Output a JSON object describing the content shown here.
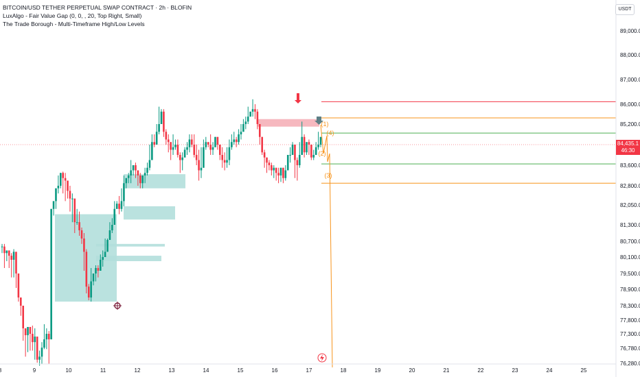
{
  "legend": {
    "title": "BITCOIN/USD TETHER PERPETUAL SWAP CONTRACT · 2h · BLOFIN",
    "indicator1": "LuxAlgo - Fair Value Gap (0, 0, , 20, Top Right, Small)",
    "indicator2": "The Trade Borough - Multi-Timeframe High/Low Levels"
  },
  "currency_label": "USDT",
  "last_price": {
    "value": "84,435.1",
    "countdown": "46:30"
  },
  "colors": {
    "up": "#089981",
    "down": "#f23645",
    "fvg_bull": "#b2dfdb",
    "fvg_bear": "#f5b4bc",
    "orange": "#f7931a",
    "green_line": "#4caf50",
    "red_line": "#f23645"
  },
  "chart_data": {
    "type": "candlestick",
    "title": "BITCOIN/USD TETHER PERPETUAL SWAP CONTRACT",
    "y_ticks": [
      "89,000.0",
      "88,000.0",
      "87,000.0",
      "86,000.0",
      "85,200.0",
      "84,400.0",
      "83,600.0",
      "82,800.0",
      "82,050.0",
      "81,300.0",
      "80,700.0",
      "80,100.0",
      "79,500.0",
      "78,900.0",
      "78,300.0",
      "77,800.0",
      "77,300.0",
      "76,780.0",
      "76,280.0"
    ],
    "x_ticks": [
      "8",
      "9",
      "10",
      "11",
      "12",
      "13",
      "14",
      "15",
      "16",
      "17",
      "18",
      "19",
      "20",
      "21",
      "22",
      "23",
      "24",
      "25"
    ],
    "levels": [
      {
        "label": "",
        "value": 86100,
        "color": "red"
      },
      {
        "label": "",
        "value": 85450,
        "color": "orange"
      },
      {
        "label": "",
        "value": 84850,
        "color": "green"
      },
      {
        "label": "",
        "value": 83650,
        "color": "green"
      },
      {
        "label": "",
        "value": 82900,
        "color": "orange"
      }
    ],
    "wave_labels": [
      "(1)",
      "(2)",
      "(3)",
      "(4)"
    ],
    "fvg_zones": [
      {
        "type": "bull",
        "top": 81700,
        "bottom": 78450,
        "from": "9.6",
        "to": "11.4"
      },
      {
        "type": "bull",
        "top": 83250,
        "bottom": 82700,
        "from": "11.6",
        "to": "13.4"
      },
      {
        "type": "bull",
        "top": 82000,
        "bottom": 81500,
        "from": "11.6",
        "to": "13.1"
      },
      {
        "type": "bull",
        "top": 80600,
        "bottom": 80500,
        "from": "10.8",
        "to": "12.8"
      },
      {
        "type": "bull",
        "top": 80150,
        "bottom": 79950,
        "from": "10.8",
        "to": "12.7"
      },
      {
        "type": "bear",
        "top": 85400,
        "bottom": 85100,
        "from": "15.5",
        "to": "17.3"
      }
    ],
    "candles": [
      [
        80600,
        80500,
        80250
      ],
      [
        80600,
        80250,
        79700
      ],
      [
        80250,
        80350,
        79950
      ],
      [
        80300,
        80150,
        79700
      ],
      [
        80250,
        80000,
        79350
      ],
      [
        80400,
        80300,
        79350
      ],
      [
        80000,
        79500,
        78950
      ],
      [
        79500,
        78600,
        78450
      ],
      [
        78600,
        78300,
        77950
      ],
      [
        77800,
        77500,
        77050
      ],
      [
        77500,
        77250,
        76500
      ],
      [
        77400,
        77550,
        76650
      ],
      [
        77500,
        77300,
        76700
      ],
      [
        77600,
        77000,
        76700
      ],
      [
        77500,
        77200,
        76400
      ],
      [
        76800,
        76400,
        76300
      ],
      [
        76700,
        76500,
        76200
      ],
      [
        77000,
        76800,
        76250
      ],
      [
        77650,
        77100,
        76750
      ],
      [
        77500,
        77300,
        76750
      ],
      [
        77400,
        77100,
        76250
      ],
      [
        78600,
        81900,
        78550
      ],
      [
        81800,
        82200,
        81650
      ],
      [
        82500,
        82700,
        81900
      ],
      [
        83200,
        82800,
        82500
      ],
      [
        82800,
        83300,
        82700
      ],
      [
        83350,
        83100,
        82500
      ],
      [
        83300,
        83000,
        82200
      ],
      [
        83000,
        82600,
        82300
      ],
      [
        82800,
        82300,
        81800
      ],
      [
        82500,
        82300,
        81400
      ],
      [
        81900,
        81400,
        81000
      ],
      [
        81900,
        81400,
        81300
      ],
      [
        81800,
        81100,
        80900
      ],
      [
        81200,
        80800,
        80600
      ],
      [
        81000,
        80300,
        79600
      ],
      [
        80400,
        79000,
        78750
      ],
      [
        79100,
        78600,
        78500
      ],
      [
        79700,
        79200,
        78450
      ],
      [
        79200,
        79500,
        79050
      ],
      [
        79800,
        79700,
        79200
      ],
      [
        79800,
        79600,
        79350
      ],
      [
        80200,
        80000,
        79600
      ],
      [
        80350,
        80100,
        79750
      ],
      [
        80800,
        80300,
        80100
      ],
      [
        80800,
        80750,
        80300
      ],
      [
        81400,
        81100,
        80800
      ],
      [
        81550,
        81300,
        81000
      ],
      [
        82200,
        81900,
        81500
      ],
      [
        82200,
        82100,
        81900
      ],
      [
        82400,
        81900,
        81700
      ],
      [
        82700,
        82200,
        81800
      ],
      [
        83200,
        82900,
        82000
      ],
      [
        82900,
        83100,
        82700
      ],
      [
        83300,
        83200,
        82900
      ],
      [
        83800,
        83400,
        82900
      ],
      [
        83500,
        83600,
        83200
      ],
      [
        83700,
        83400,
        83100
      ],
      [
        83400,
        83200,
        82800
      ],
      [
        83300,
        82900,
        82700
      ],
      [
        82900,
        83200,
        82700
      ],
      [
        83500,
        83300,
        82900
      ],
      [
        83700,
        83500,
        83200
      ],
      [
        84400,
        83800,
        83400
      ],
      [
        84800,
        84500,
        83800
      ],
      [
        84800,
        84400,
        84300
      ],
      [
        85200,
        84900,
        84400
      ],
      [
        85900,
        85200,
        84800
      ],
      [
        85800,
        85700,
        85400
      ],
      [
        85800,
        84900,
        84700
      ],
      [
        85000,
        84600,
        84400
      ],
      [
        84800,
        84500,
        84100
      ],
      [
        84300,
        84200,
        83800
      ],
      [
        84800,
        84300,
        84000
      ],
      [
        84600,
        84400,
        84200
      ],
      [
        84600,
        84000,
        83900
      ],
      [
        84100,
        83800,
        83300
      ],
      [
        84100,
        83900,
        83400
      ],
      [
        84300,
        84200,
        83900
      ],
      [
        84500,
        84300,
        84000
      ],
      [
        84800,
        84600,
        84100
      ],
      [
        84800,
        84400,
        84300
      ],
      [
        84800,
        84000,
        83900
      ],
      [
        84400,
        83800,
        83600
      ],
      [
        84200,
        83400,
        83000
      ],
      [
        84300,
        83500,
        83100
      ],
      [
        84600,
        84300,
        83500
      ],
      [
        84700,
        84500,
        84200
      ],
      [
        84500,
        84400,
        84300
      ],
      [
        84800,
        84200,
        84000
      ],
      [
        84500,
        84300,
        84000
      ],
      [
        84500,
        84700,
        84300
      ],
      [
        84600,
        84400,
        84200
      ],
      [
        84200,
        84000,
        83800
      ],
      [
        84300,
        83800,
        83500
      ],
      [
        84100,
        83700,
        83400
      ],
      [
        84300,
        83800,
        83500
      ],
      [
        84600,
        84300,
        83600
      ],
      [
        84800,
        84500,
        84200
      ],
      [
        84900,
        84600,
        84400
      ],
      [
        84700,
        84500,
        84300
      ],
      [
        85000,
        84800,
        84400
      ],
      [
        85200,
        84900,
        84600
      ],
      [
        85400,
        85200,
        84900
      ],
      [
        85500,
        85300,
        85000
      ],
      [
        85900,
        85500,
        85200
      ],
      [
        85600,
        85700,
        85500
      ],
      [
        86200,
        85800,
        85500
      ],
      [
        86000,
        85700,
        85400
      ],
      [
        85800,
        85200,
        85000
      ],
      [
        85200,
        84700,
        84400
      ],
      [
        84700,
        84100,
        84000
      ],
      [
        84200,
        83900,
        83500
      ],
      [
        83900,
        83700,
        83300
      ],
      [
        83800,
        83600,
        83400
      ],
      [
        83700,
        83400,
        83200
      ],
      [
        83600,
        83500,
        83100
      ],
      [
        83500,
        83300,
        83000
      ],
      [
        83500,
        83200,
        82900
      ],
      [
        83300,
        83500,
        82950
      ],
      [
        83500,
        83100,
        82900
      ],
      [
        83600,
        83400,
        83000
      ],
      [
        83800,
        84000,
        83400
      ],
      [
        84300,
        84000,
        83700
      ],
      [
        84500,
        84400,
        84000
      ],
      [
        84200,
        83800,
        83100
      ],
      [
        83900,
        83600,
        83000
      ],
      [
        84500,
        84000,
        83500
      ],
      [
        85300,
        84700,
        84300
      ],
      [
        84800,
        84100,
        83900
      ],
      [
        84200,
        84500,
        84000
      ],
      [
        84600,
        84400,
        84000
      ],
      [
        84300,
        83900,
        83800
      ],
      [
        84200,
        84000,
        83800
      ],
      [
        84500,
        84300,
        84000
      ],
      [
        84900,
        84400,
        84200
      ],
      [
        84500,
        84700,
        84300
      ]
    ]
  }
}
